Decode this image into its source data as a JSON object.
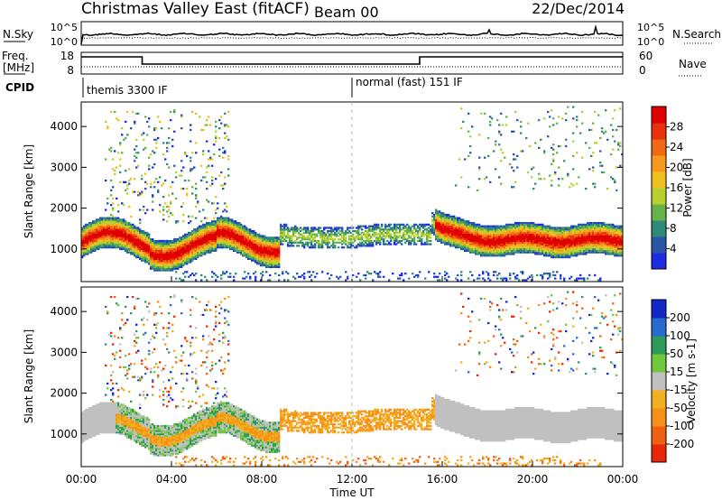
{
  "header": {
    "title": "Christmas Valley East (fitACF)",
    "beam": "Beam 00",
    "date": "22/Dec/2014"
  },
  "status": {
    "left_labels": {
      "nsky": "N.Sky",
      "freq": "Freq.",
      "freq_unit": "[MHz]",
      "cpid": "CPID"
    },
    "right_labels": {
      "nsearch": "N.Search",
      "nave": "Nave"
    },
    "nsky_ticks": [
      "10^5",
      "10^0"
    ],
    "nsearch_ticks": [
      "10^5",
      "10^0"
    ],
    "freq_ticks": [
      "18",
      "8"
    ],
    "nave_ticks": [
      "60",
      "0"
    ],
    "cpid_segments": [
      {
        "label": "themis 3300 IF",
        "start_hour": 0,
        "end_hour": 12
      },
      {
        "label": "normal (fast) 151 IF",
        "start_hour": 12,
        "end_hour": 24
      }
    ],
    "freq_steps": [
      {
        "start_hour": 0,
        "end_hour": 2.7,
        "level": "high"
      },
      {
        "start_hour": 2.7,
        "end_hour": 15.0,
        "level": "low"
      },
      {
        "start_hour": 15.0,
        "end_hour": 24,
        "level": "high"
      }
    ]
  },
  "chart_data": [
    {
      "type": "heatmap",
      "quantity": "Power",
      "ylabel": "Slant Range [km]",
      "ylim": [
        200,
        4600
      ],
      "yticks": [
        "1000",
        "2000",
        "3000",
        "4000"
      ],
      "colorbar": {
        "label": "Power [dB]",
        "ticks": [
          "4",
          "8",
          "12",
          "16",
          "20",
          "24",
          "28"
        ],
        "colors": [
          "#1e2be0",
          "#2a55a8",
          "#2f8a7a",
          "#66b34a",
          "#b8cf30",
          "#f0c020",
          "#f59a1c",
          "#f06a14",
          "#e8300c",
          "#e00000"
        ]
      },
      "features": [
        {
          "desc": "main ionospheric band",
          "start_hour": 0.1,
          "end_hour": 8.8,
          "range_km": [
            800,
            1600
          ]
        },
        {
          "desc": "band continuation",
          "start_hour": 8.8,
          "end_hour": 15.5,
          "range_km": [
            1100,
            1700
          ]
        },
        {
          "desc": "evening strong band",
          "start_hour": 15.7,
          "end_hour": 24,
          "range_km": [
            800,
            1700
          ]
        }
      ]
    },
    {
      "type": "heatmap",
      "quantity": "Velocity",
      "ylabel": "Slant Range [km]",
      "xlabel": "Time UT",
      "ylim": [
        200,
        4600
      ],
      "yticks": [
        "1000",
        "2000",
        "3000",
        "4000"
      ],
      "xticks": [
        "00:00",
        "04:00",
        "08:00",
        "12:00",
        "16:00",
        "20:00",
        "00:00"
      ],
      "xlim_hours": [
        0,
        24
      ],
      "colorbar": {
        "label": "Velocity [m s-1]",
        "ticks": [
          "200",
          "100",
          "50",
          "15",
          "-15",
          "-50",
          "-100",
          "-200"
        ],
        "colors": [
          "#1428c8",
          "#2a6ad0",
          "#2d9a5a",
          "#72c83c",
          "#c0c0c0",
          "#f0b020",
          "#f59018",
          "#f06010",
          "#e82808"
        ]
      }
    }
  ]
}
